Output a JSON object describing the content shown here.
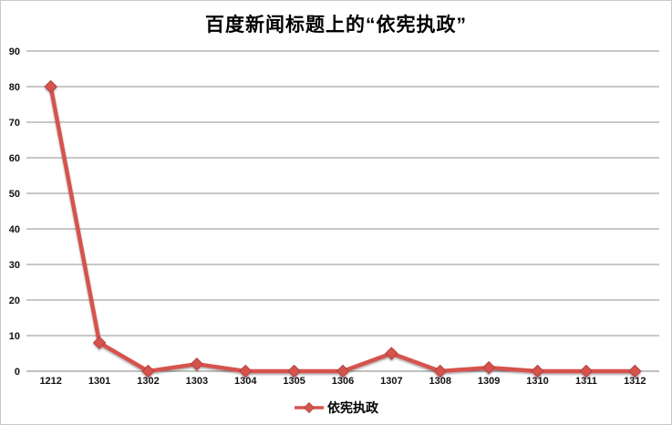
{
  "chart_data": {
    "type": "line",
    "title": "百度新闻标题上的“依宪执政”",
    "categories": [
      "1212",
      "1301",
      "1302",
      "1303",
      "1304",
      "1305",
      "1306",
      "1307",
      "1308",
      "1309",
      "1310",
      "1311",
      "1312"
    ],
    "series": [
      {
        "name": "依宪执政",
        "values": [
          80,
          8,
          0,
          2,
          0,
          0,
          0,
          5,
          0,
          1,
          0,
          0,
          0
        ]
      }
    ],
    "xlabel": "",
    "ylabel": "",
    "ylim": [
      0,
      90
    ],
    "y_ticks": [
      0,
      10,
      20,
      30,
      40,
      50,
      60,
      70,
      80,
      90
    ],
    "grid": "horizontal",
    "legend_position": "bottom",
    "colors": {
      "series": "#d6534e",
      "marker_stroke": "#b2423e",
      "gridline": "#a6a6a6",
      "axis_line": "#9b9b9b",
      "tick_label": "#111111",
      "title": "#000000",
      "background": "#ffffff",
      "border": "#c8c8c8"
    }
  },
  "legend": {
    "label": "依宪执政"
  }
}
